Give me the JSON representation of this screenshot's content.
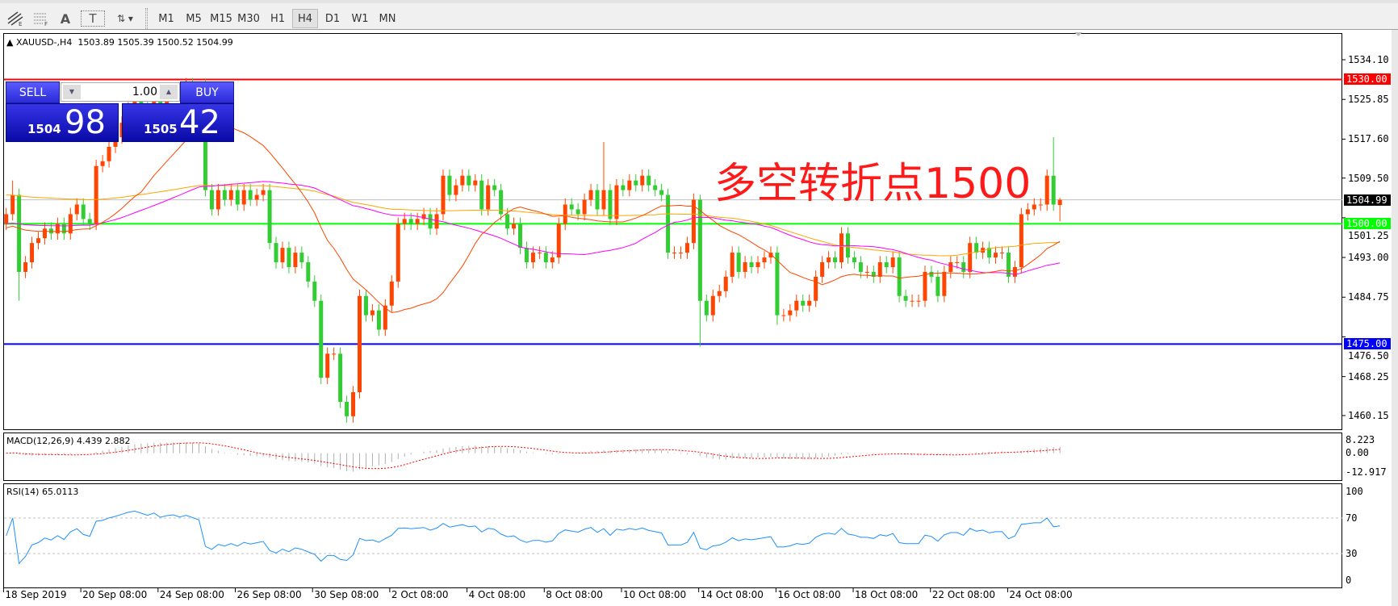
{
  "toolbar": {
    "tools": [
      {
        "icon": "fibonacci-expansion-icon"
      },
      {
        "icon": "fibonacci-fan-icon"
      },
      {
        "icon": "text-icon",
        "glyph": "A"
      },
      {
        "icon": "text-label-icon",
        "glyph": "T"
      },
      {
        "icon": "arrows-dropdown-icon"
      }
    ],
    "timeframes": [
      "M1",
      "M5",
      "M15",
      "M30",
      "H1",
      "H4",
      "D1",
      "W1",
      "MN"
    ],
    "active_timeframe": "H4"
  },
  "header": {
    "symbol": "XAUUSD-,H4",
    "ohlc": "1503.89 1505.39 1500.52 1504.99"
  },
  "trade": {
    "sell_label": "SELL",
    "buy_label": "BUY",
    "lot": "1.00",
    "sell_big": "1504",
    "sell_small": "98",
    "buy_big": "1505",
    "buy_small": "42"
  },
  "annotation": "多空转折点1500",
  "colors": {
    "bull": "#ff4500",
    "bear": "#32cd32",
    "ma_fast": "#ff4500",
    "ma_mid": "#ff00ff",
    "ma_slow": "#ffa500",
    "resistance": "#ff0000",
    "pivot": "#00ff00",
    "support": "#0000ff",
    "macd_signal": "#ff0000",
    "rsi": "#1e90ff"
  },
  "levels": [
    {
      "name": "resistance",
      "value": 1530.0,
      "label": "1530.00",
      "color": "#ff0000"
    },
    {
      "name": "pivot",
      "value": 1500.0,
      "label": "1500.00",
      "color": "#00ff00"
    },
    {
      "name": "support",
      "value": 1475.0,
      "label": "1475.00",
      "color": "#0000ff"
    }
  ],
  "current_price": {
    "value": 1504.99,
    "label": "1504.99"
  },
  "chart_data": {
    "type": "candlestick",
    "price_ticks": [
      "1534.10",
      "1525.85",
      "1517.60",
      "1509.50",
      "1501.25",
      "1493.00",
      "1484.75",
      "1476.50",
      "1468.25",
      "1460.15"
    ],
    "x_labels": [
      "18 Sep 2019",
      "20 Sep 08:00",
      "24 Sep 08:00",
      "26 Sep 08:00",
      "30 Sep 08:00",
      "2 Oct 08:00",
      "4 Oct 08:00",
      "8 Oct 08:00",
      "10 Oct 08:00",
      "14 Oct 08:00",
      "16 Oct 08:00",
      "18 Oct 08:00",
      "22 Oct 08:00",
      "24 Oct 08:00"
    ],
    "close": [
      1502,
      1506,
      1490,
      1492,
      1496,
      1497,
      1499,
      1498,
      1500,
      1498,
      1502,
      1504,
      1501,
      1500,
      1512,
      1513,
      1516,
      1518,
      1521,
      1524,
      1526,
      1525,
      1524,
      1527,
      1525,
      1527,
      1528,
      1527,
      1529,
      1528,
      1527,
      1507,
      1503,
      1507,
      1505,
      1507,
      1504,
      1507,
      1505,
      1506,
      1507,
      1496,
      1492,
      1495,
      1491,
      1494,
      1492,
      1488,
      1484,
      1468,
      1473,
      1473,
      1463,
      1460,
      1465,
      1485,
      1481,
      1482,
      1478,
      1483,
      1488,
      1500,
      1501,
      1500,
      1501,
      1502,
      1499,
      1502,
      1510,
      1506,
      1508,
      1510,
      1508,
      1509,
      1503,
      1508,
      1507,
      1502,
      1499,
      1500,
      1495,
      1492,
      1494,
      1494,
      1492,
      1493,
      1500,
      1504,
      1503,
      1502,
      1505,
      1507,
      1503,
      1507,
      1501,
      1508,
      1507,
      1509,
      1508,
      1510,
      1508,
      1507,
      1506,
      1494,
      1494,
      1494,
      1496,
      1505,
      1484,
      1481,
      1485,
      1486,
      1489,
      1494,
      1490,
      1492,
      1491,
      1492,
      1493,
      1494,
      1481,
      1481,
      1482,
      1484,
      1483,
      1484,
      1489,
      1492,
      1493,
      1492,
      1498,
      1493,
      1492,
      1490,
      1490,
      1489,
      1492,
      1491,
      1493,
      1485,
      1484,
      1484,
      1484,
      1490,
      1489,
      1485,
      1490,
      1492,
      1492,
      1490,
      1496,
      1494,
      1495,
      1493,
      1494,
      1494,
      1489,
      1491,
      1502,
      1503,
      1504,
      1504,
      1510,
      1504,
      1504.99
    ],
    "last_open": 1503.89,
    "last_high": 1505.39,
    "last_low": 1500.52,
    "wick_high": {
      "1": 1509,
      "31": 1530,
      "93": 1517,
      "108": 1506,
      "163": 1518
    },
    "wick_low": {
      "2": 1484,
      "53": 1458.7,
      "108": 1474.5,
      "120": 1479
    },
    "macd": {
      "label": "MACD(12,26,9) 4.439 2.882",
      "ticks": [
        "8.223",
        "0.00",
        "-12.917"
      ],
      "range": [
        -12.917,
        8.223
      ]
    },
    "rsi": {
      "label": "RSI(14) 65.0113",
      "ticks": [
        "100",
        "70",
        "30",
        "0"
      ],
      "levels": [
        70,
        30
      ]
    }
  }
}
